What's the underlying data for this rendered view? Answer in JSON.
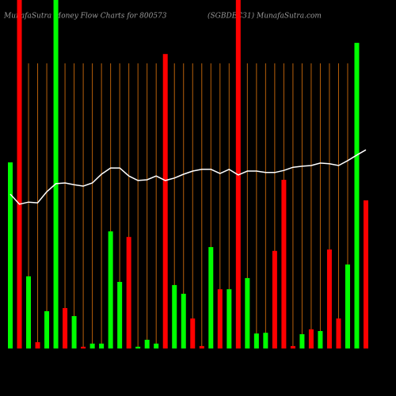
{
  "chart_data": {
    "type": "bar",
    "title": "MunafaSutra Money Flow Charts for 800573",
    "subtitle": "(SGBDEC31) MunafaSutra.com",
    "categories": [
      null,
      null,
      null,
      null,
      null,
      null,
      null,
      null,
      null,
      null,
      null,
      null,
      null,
      null,
      null,
      null,
      null,
      null,
      null,
      null,
      null,
      null,
      null,
      null,
      null,
      null,
      null,
      null,
      null,
      null,
      null,
      null,
      null,
      null,
      null,
      null,
      null,
      null,
      null,
      null
    ],
    "ylim": [
      0,
      100
    ],
    "bars": {
      "values": [
        53.4,
        100,
        20.7,
        1.8,
        10.7,
        100,
        11.6,
        9.3,
        0.5,
        1.4,
        1.4,
        33.6,
        19.1,
        32.0,
        0.5,
        2.5,
        1.4,
        84.5,
        18.2,
        15.7,
        8.6,
        0.7,
        29.1,
        17.0,
        17.0,
        100,
        20.2,
        4.3,
        4.5,
        28.0,
        48.4,
        0.7,
        4.1,
        5.5,
        5.0,
        28.4,
        8.6,
        24.1,
        87.7,
        42.5
      ],
      "colors": [
        "#00ff00",
        "#ff0000",
        "#00ff00",
        "#ff0000",
        "#00ff00",
        "#00ff00",
        "#ff0000",
        "#00ff00",
        "#ff0000",
        "#00ff00",
        "#00ff00",
        "#00ff00",
        "#00ff00",
        "#ff0000",
        "#00ff00",
        "#00ff00",
        "#00ff00",
        "#ff0000",
        "#00ff00",
        "#00ff00",
        "#ff0000",
        "#ff0000",
        "#00ff00",
        "#ff0000",
        "#00ff00",
        "#ff0000",
        "#00ff00",
        "#00ff00",
        "#00ff00",
        "#ff0000",
        "#ff0000",
        "#ff0000",
        "#00ff00",
        "#ff0000",
        "#00ff00",
        "#ff0000",
        "#ff0000",
        "#00ff00",
        "#00ff00",
        "#ff0000"
      ]
    },
    "line": {
      "color": "#ffffff",
      "values": [
        44.3,
        41.4,
        42.0,
        41.8,
        45.0,
        47.3,
        47.5,
        47.0,
        46.6,
        47.5,
        50.0,
        51.8,
        51.8,
        49.5,
        48.2,
        48.4,
        49.5,
        48.2,
        48.9,
        50.0,
        50.9,
        51.4,
        51.4,
        50.2,
        51.4,
        49.8,
        50.9,
        50.9,
        50.5,
        50.5,
        51.1,
        52.0,
        52.3,
        52.5,
        53.2,
        53.0,
        52.5,
        53.9,
        55.5,
        57.0
      ]
    },
    "grid_color": "#b8600a"
  }
}
